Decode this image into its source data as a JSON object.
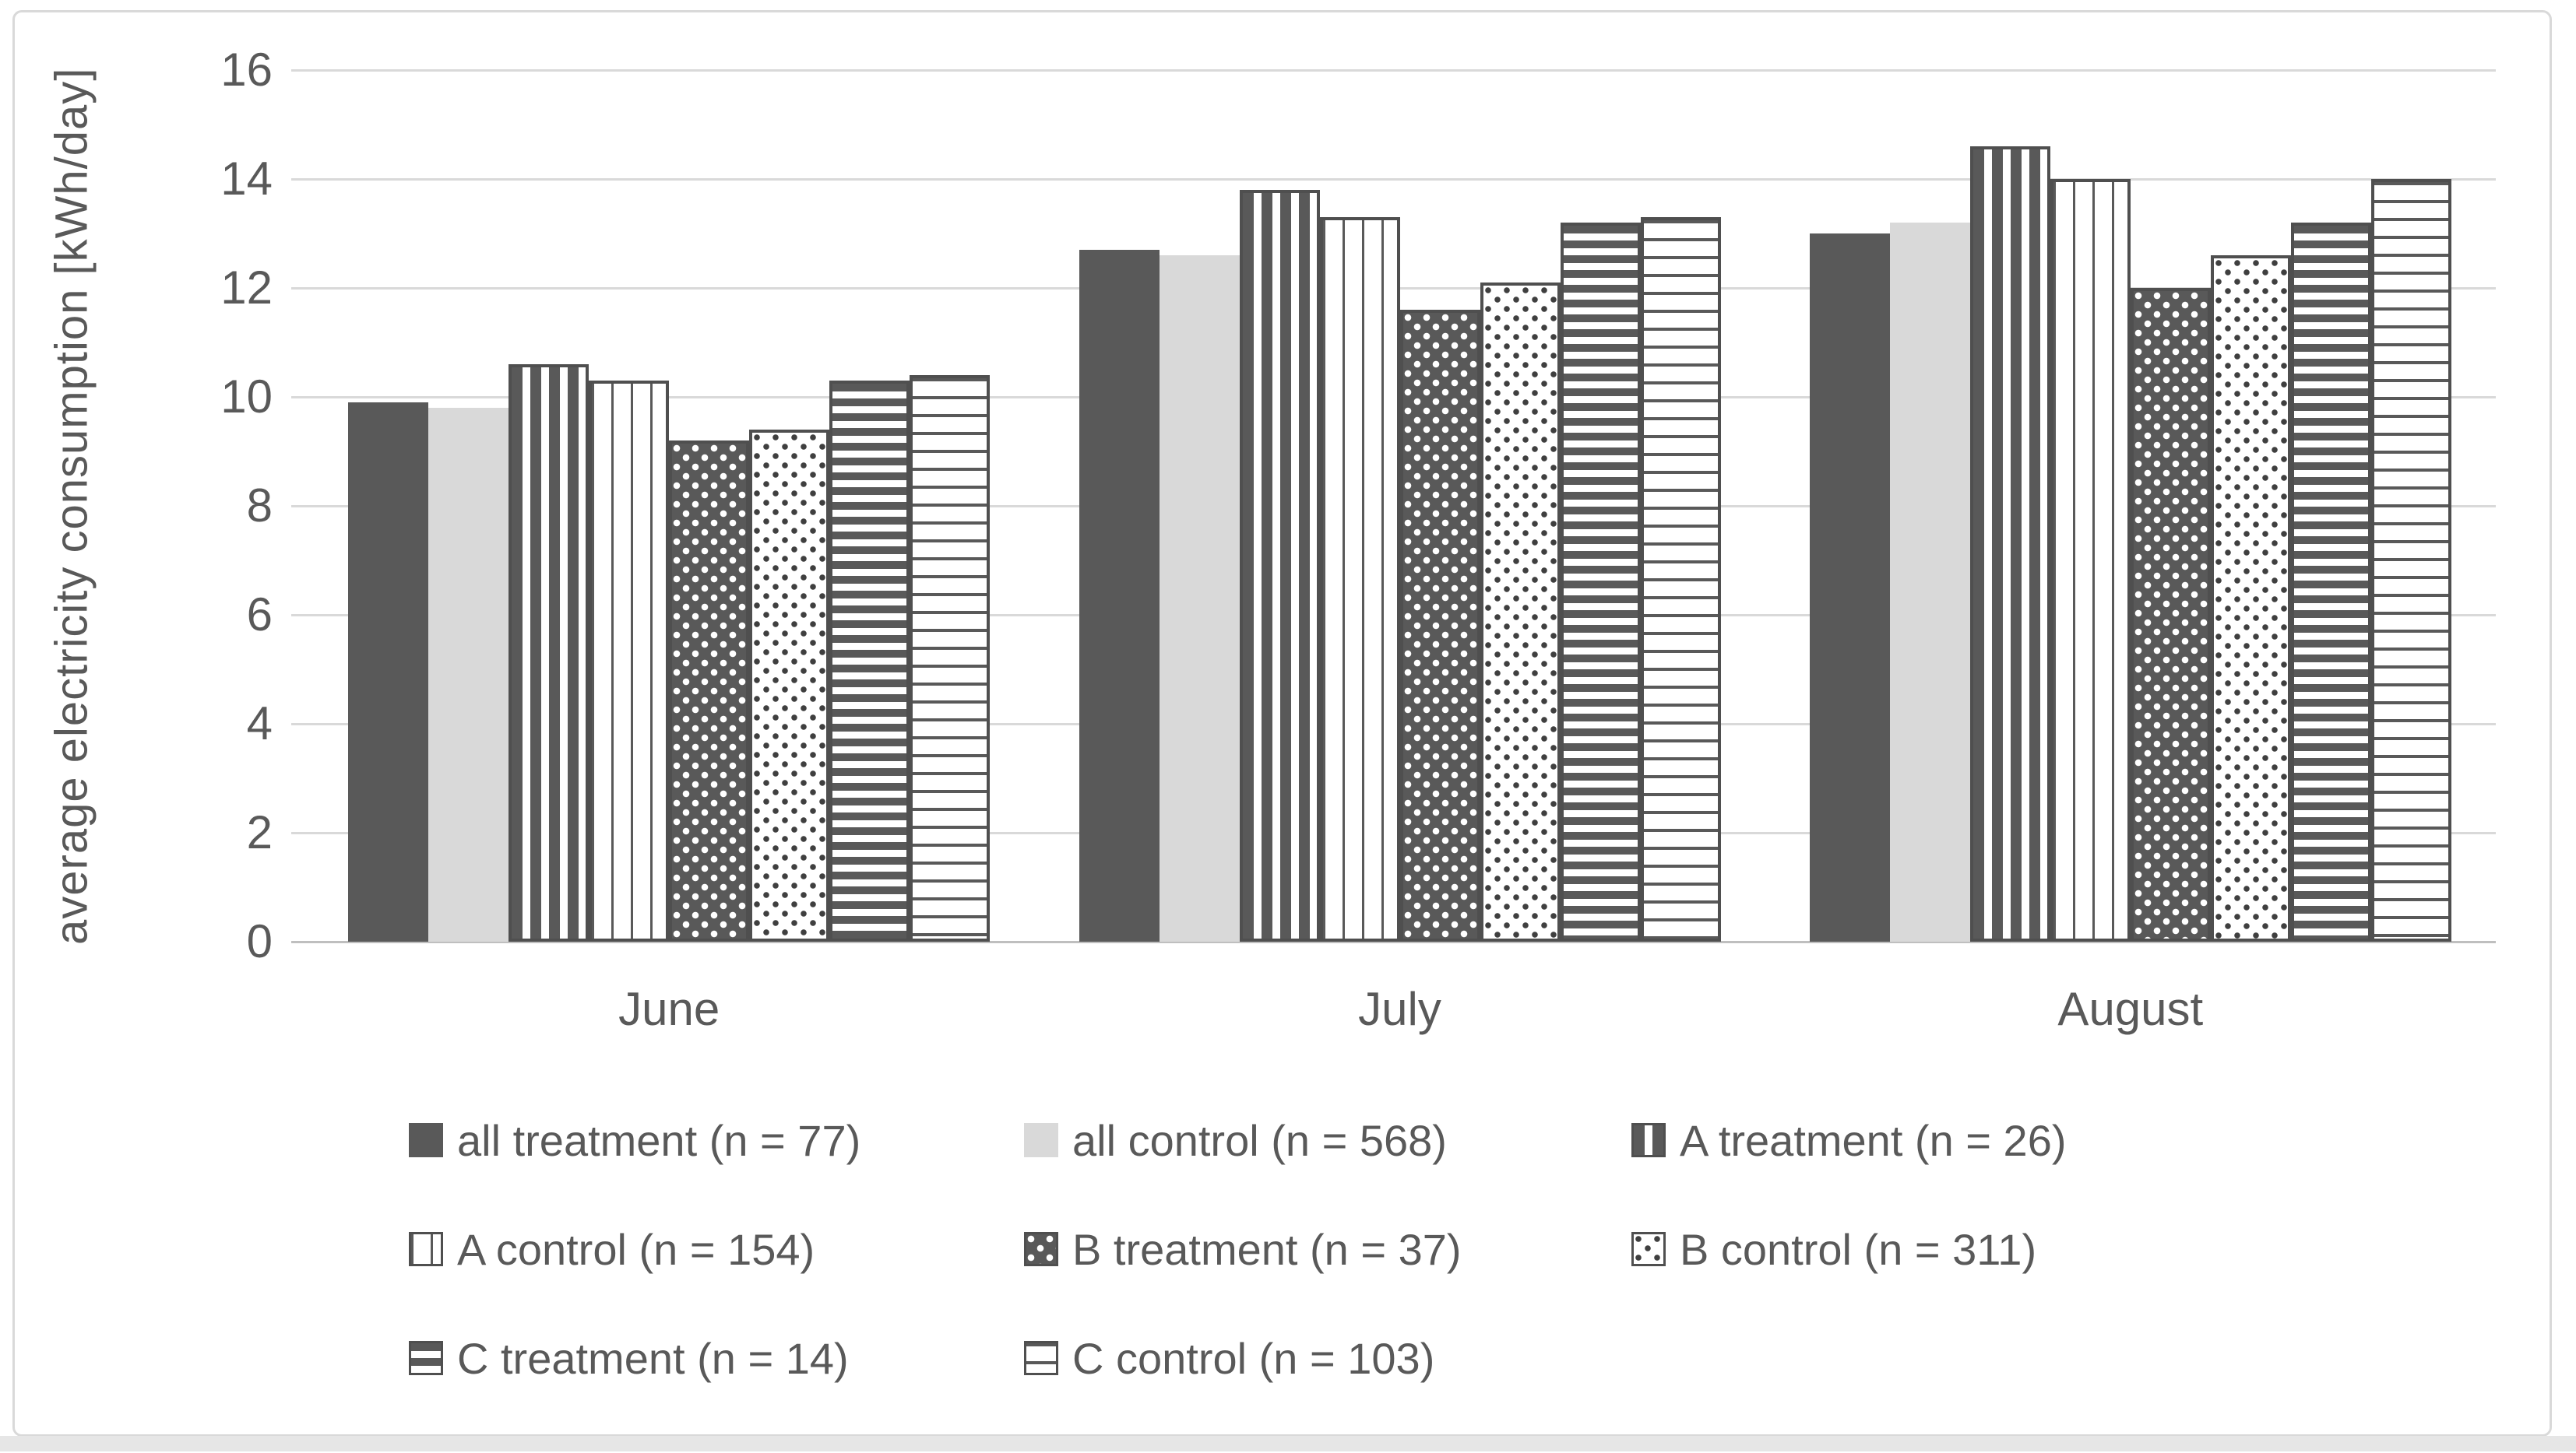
{
  "chart_data": {
    "type": "bar",
    "title": "",
    "xlabel": "",
    "ylabel": "average electricity consumption [kWh/day]",
    "ylim": [
      0,
      16
    ],
    "yticks": [
      0,
      2,
      4,
      6,
      8,
      10,
      12,
      14,
      16
    ],
    "grid": true,
    "legend_position": "bottom",
    "categories": [
      "June",
      "July",
      "August"
    ],
    "series": [
      {
        "name": "all treatment (n = 77)",
        "pattern": "solid-dark",
        "values": [
          9.9,
          12.7,
          13.0
        ]
      },
      {
        "name": "all control (n = 568)",
        "pattern": "solid-light",
        "values": [
          9.8,
          12.6,
          13.2
        ]
      },
      {
        "name": "A treatment (n = 26)",
        "pattern": "stripes-v-thick",
        "values": [
          10.6,
          13.8,
          14.6
        ]
      },
      {
        "name": "A control (n = 154)",
        "pattern": "stripes-v-thin",
        "values": [
          10.3,
          13.3,
          14.0
        ]
      },
      {
        "name": "B treatment (n = 37)",
        "pattern": "dots-light-on-dark",
        "values": [
          9.2,
          11.6,
          12.0
        ]
      },
      {
        "name": "B control (n = 311)",
        "pattern": "dots-dark-on-light",
        "values": [
          9.4,
          12.1,
          12.6
        ]
      },
      {
        "name": "C treatment (n = 14)",
        "pattern": "stripes-h-thick",
        "values": [
          10.3,
          13.2,
          13.2
        ]
      },
      {
        "name": "C control (n = 103)",
        "pattern": "stripes-h-thin",
        "values": [
          10.4,
          13.3,
          14.0
        ]
      }
    ]
  },
  "colors": {
    "dark": "#595959",
    "light_fill": "#d9d9d9",
    "gridline": "#d9d9d9",
    "axis_line": "#bfbfbf",
    "text": "#595959",
    "frame_border": "#d9d9d9",
    "bottom_strip": "#e6e6e6"
  }
}
